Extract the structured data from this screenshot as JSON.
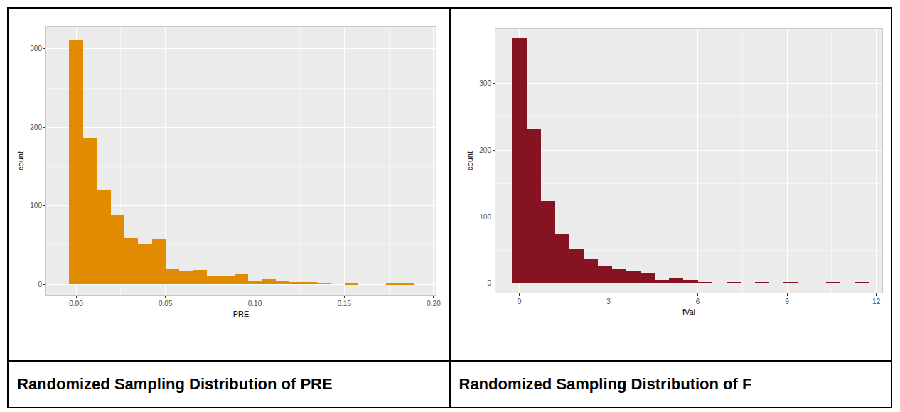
{
  "chart_data": [
    {
      "type": "histogram",
      "title": "Randomized Sampling Distribution of PRE",
      "x_label": "PRE",
      "y_label": "count",
      "bins": [
        -0.0038,
        0.0039,
        0.0116,
        0.0193,
        0.027,
        0.0347,
        0.0424,
        0.0501,
        0.0578,
        0.0655,
        0.0732,
        0.0809,
        0.0886,
        0.0963,
        0.104,
        0.1117,
        0.1194,
        0.1271,
        0.1348,
        0.1425,
        0.1502,
        0.1579,
        0.1656,
        0.1733,
        0.181,
        0.1887
      ],
      "counts": [
        312,
        187,
        121,
        89,
        59,
        51,
        57,
        19,
        17,
        18,
        11,
        11,
        13,
        5,
        6,
        5,
        3,
        3,
        2,
        0,
        1,
        0,
        0,
        1,
        1
      ],
      "color": "#e08b00",
      "xlim": [
        -0.0167,
        0.2012
      ],
      "xticks": [
        {
          "value": 0,
          "label": "0.00"
        },
        {
          "value": 0.05,
          "label": "0.05"
        },
        {
          "value": 0.1,
          "label": "0.10"
        },
        {
          "value": 0.15,
          "label": "0.15"
        },
        {
          "value": 0.2,
          "label": "0.20"
        }
      ],
      "ylim": [
        -13.5,
        328
      ],
      "yticks": [
        0,
        100,
        200,
        300
      ],
      "grid": true
    },
    {
      "type": "histogram",
      "title": "Randomized Sampling Distribution of F",
      "x_label": "fVal",
      "y_label": "count",
      "bins": [
        -0.24,
        0.24,
        0.72,
        1.2,
        1.68,
        2.16,
        2.64,
        3.12,
        3.6,
        4.08,
        4.56,
        5.04,
        5.52,
        6,
        6.48,
        6.96,
        7.44,
        7.92,
        8.4,
        8.88,
        9.36,
        9.84,
        10.32,
        10.8,
        11.28,
        11.76
      ],
      "counts": [
        368,
        233,
        124,
        73,
        51,
        36,
        26,
        22,
        18,
        16,
        5,
        8,
        5,
        2,
        0,
        1,
        0,
        1,
        0,
        1,
        0,
        0,
        1,
        0,
        1
      ],
      "color": "#861322",
      "xlim": [
        -0.8,
        12.2
      ],
      "xticks": [
        0,
        3,
        6,
        9,
        12
      ],
      "ylim": [
        -14,
        382
      ],
      "yticks": [
        0,
        100,
        200,
        300
      ],
      "grid": true
    }
  ]
}
